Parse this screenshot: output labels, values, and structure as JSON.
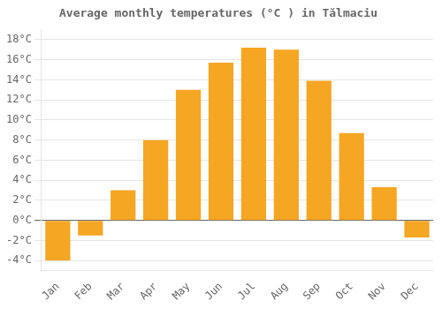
{
  "chart_data": {
    "type": "bar",
    "title": "Average monthly temperatures (°C ) in Tălmaciu",
    "categories": [
      "Jan",
      "Feb",
      "Mar",
      "Apr",
      "May",
      "Jun",
      "Jul",
      "Aug",
      "Sep",
      "Oct",
      "Nov",
      "Dec"
    ],
    "values": [
      -4.0,
      -1.5,
      3.0,
      8.0,
      13.0,
      15.7,
      17.2,
      17.0,
      13.9,
      8.7,
      3.3,
      -1.7
    ],
    "color": "#F5A623",
    "ylim": [
      -5,
      19
    ],
    "yticks": [
      {
        "value": -4,
        "label": "-4°C"
      },
      {
        "value": -2,
        "label": "-2°C"
      },
      {
        "value": 0,
        "label": "0°C"
      },
      {
        "value": 2,
        "label": "2°C"
      },
      {
        "value": 4,
        "label": "4°C"
      },
      {
        "value": 6,
        "label": "6°C"
      },
      {
        "value": 8,
        "label": "8°C"
      },
      {
        "value": 10,
        "label": "10°C"
      },
      {
        "value": 12,
        "label": "12°C"
      },
      {
        "value": 14,
        "label": "14°C"
      },
      {
        "value": 16,
        "label": "16°C"
      },
      {
        "value": 18,
        "label": "18°C"
      }
    ],
    "grid": true
  }
}
